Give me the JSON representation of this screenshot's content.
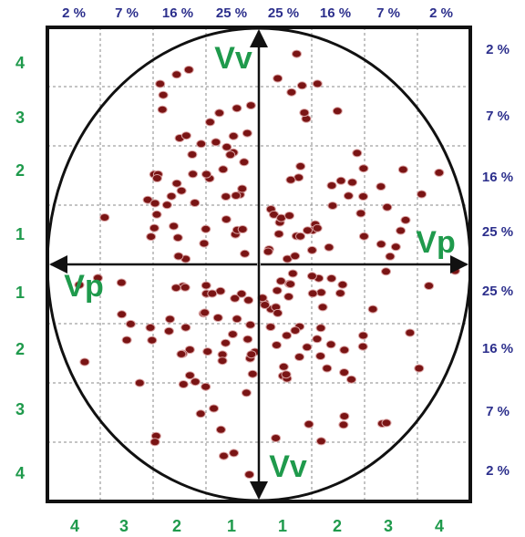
{
  "top_labels": [
    "2 %",
    "7 %",
    "16 %",
    "25 %",
    "25 %",
    "16 %",
    "7 %",
    "2 %"
  ],
  "right_labels": [
    "2 %",
    "7 %",
    "16 %",
    "25 %",
    "25 %",
    "16 %",
    "7 %",
    "2 %"
  ],
  "left_labels": [
    "4",
    "3",
    "2",
    "1",
    "1",
    "2",
    "3",
    "4"
  ],
  "bottom_labels": [
    "4",
    "3",
    "2",
    "1",
    "1",
    "2",
    "3",
    "4"
  ],
  "axes": {
    "vertical_top": "Vv",
    "vertical_bottom": "Vv",
    "horizontal_right": "Vp",
    "horizontal_left": "Vp"
  }
}
